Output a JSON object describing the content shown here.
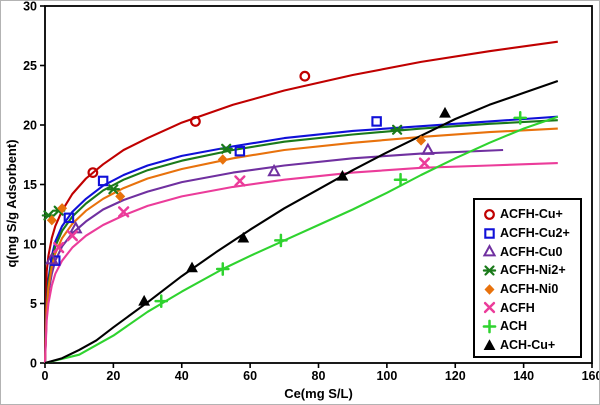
{
  "figure": {
    "background": "#ffffff",
    "border_color": "#b3b3b3"
  },
  "chart_data": {
    "type": "scatter",
    "title": "",
    "xlabel": "Ce(mg S/L)",
    "ylabel": "q(mg S/g Adsorbent)",
    "xlim": [
      0,
      160
    ],
    "ylim": [
      0,
      30
    ],
    "xticks": [
      0,
      20,
      40,
      60,
      80,
      100,
      120,
      140,
      160
    ],
    "yticks": [
      0,
      5,
      10,
      15,
      20,
      25,
      30
    ],
    "grid": false,
    "legend": {
      "position": "inside-right",
      "border_color": "#000000",
      "background": "#ffffff"
    },
    "series": [
      {
        "name": "ACFH-Cu+",
        "color": "#C00000",
        "marker": "circle-open",
        "points": [
          [
            14,
            16.0
          ],
          [
            44,
            20.3
          ],
          [
            76,
            24.1
          ]
        ],
        "curve": [
          [
            0,
            0
          ],
          [
            0.5,
            7.7
          ],
          [
            1,
            9.0
          ],
          [
            2,
            10.5
          ],
          [
            3,
            11.5
          ],
          [
            5,
            12.8
          ],
          [
            8,
            14.2
          ],
          [
            12,
            15.5
          ],
          [
            17,
            16.7
          ],
          [
            23,
            17.9
          ],
          [
            30,
            18.9
          ],
          [
            40,
            20.2
          ],
          [
            55,
            21.7
          ],
          [
            70,
            22.9
          ],
          [
            90,
            24.2
          ],
          [
            110,
            25.3
          ],
          [
            130,
            26.2
          ],
          [
            150,
            27.0
          ]
        ]
      },
      {
        "name": "ACFH-Cu2+",
        "color": "#1010D8",
        "marker": "square-open",
        "points": [
          [
            3,
            8.6
          ],
          [
            7,
            12.2
          ],
          [
            17,
            15.3
          ],
          [
            57,
            17.8
          ],
          [
            97,
            20.3
          ]
        ],
        "curve": [
          [
            0,
            0
          ],
          [
            0.5,
            5.0
          ],
          [
            1,
            7.0
          ],
          [
            2,
            9.0
          ],
          [
            3,
            10.2
          ],
          [
            5,
            11.5
          ],
          [
            8,
            12.7
          ],
          [
            12,
            13.8
          ],
          [
            17,
            14.9
          ],
          [
            23,
            15.8
          ],
          [
            30,
            16.6
          ],
          [
            40,
            17.4
          ],
          [
            55,
            18.2
          ],
          [
            70,
            18.9
          ],
          [
            90,
            19.5
          ],
          [
            110,
            19.9
          ],
          [
            130,
            20.3
          ],
          [
            150,
            20.7
          ]
        ]
      },
      {
        "name": "ACFH-Cu0",
        "color": "#7030A0",
        "marker": "triangle-open",
        "points": [
          [
            2,
            8.7
          ],
          [
            9,
            11.3
          ],
          [
            67,
            16.1
          ],
          [
            112,
            17.9
          ]
        ],
        "curve": [
          [
            0,
            0
          ],
          [
            0.5,
            4.2
          ],
          [
            1,
            5.9
          ],
          [
            2,
            7.5
          ],
          [
            3,
            8.6
          ],
          [
            5,
            9.8
          ],
          [
            8,
            10.9
          ],
          [
            12,
            11.9
          ],
          [
            17,
            12.9
          ],
          [
            23,
            13.7
          ],
          [
            30,
            14.4
          ],
          [
            40,
            15.2
          ],
          [
            55,
            16.0
          ],
          [
            70,
            16.6
          ],
          [
            90,
            17.2
          ],
          [
            110,
            17.6
          ],
          [
            134,
            17.9
          ]
        ]
      },
      {
        "name": "ACFH-Ni2+",
        "color": "#1A7A1A",
        "marker": "star",
        "points": [
          [
            1,
            12.4
          ],
          [
            4,
            12.8
          ],
          [
            20,
            14.6
          ],
          [
            53,
            18.0
          ],
          [
            103,
            19.6
          ]
        ],
        "curve": [
          [
            0,
            0
          ],
          [
            0.5,
            4.8
          ],
          [
            1,
            6.7
          ],
          [
            2,
            8.6
          ],
          [
            3,
            9.8
          ],
          [
            5,
            11.1
          ],
          [
            8,
            12.3
          ],
          [
            12,
            13.4
          ],
          [
            17,
            14.5
          ],
          [
            23,
            15.4
          ],
          [
            30,
            16.2
          ],
          [
            40,
            17.0
          ],
          [
            55,
            17.9
          ],
          [
            70,
            18.6
          ],
          [
            90,
            19.2
          ],
          [
            110,
            19.7
          ],
          [
            130,
            20.1
          ],
          [
            150,
            20.4
          ]
        ]
      },
      {
        "name": "ACFH-Ni0",
        "color": "#E8720C",
        "marker": "diamond-filled",
        "points": [
          [
            2,
            12.0
          ],
          [
            5,
            13.0
          ],
          [
            22,
            14.0
          ],
          [
            52,
            17.1
          ],
          [
            110,
            18.7
          ]
        ],
        "curve": [
          [
            0,
            0
          ],
          [
            0.5,
            4.5
          ],
          [
            1,
            6.3
          ],
          [
            2,
            8.1
          ],
          [
            3,
            9.2
          ],
          [
            5,
            10.5
          ],
          [
            8,
            11.7
          ],
          [
            12,
            12.8
          ],
          [
            17,
            13.8
          ],
          [
            23,
            14.7
          ],
          [
            30,
            15.5
          ],
          [
            40,
            16.3
          ],
          [
            55,
            17.2
          ],
          [
            70,
            17.9
          ],
          [
            90,
            18.5
          ],
          [
            110,
            19.0
          ],
          [
            130,
            19.4
          ],
          [
            150,
            19.7
          ]
        ]
      },
      {
        "name": "ACFH",
        "color": "#EB3C9A",
        "marker": "x",
        "points": [
          [
            4,
            9.7
          ],
          [
            8,
            10.7
          ],
          [
            23,
            12.7
          ],
          [
            57,
            15.3
          ],
          [
            111,
            16.8
          ]
        ],
        "curve": [
          [
            0,
            0
          ],
          [
            0.5,
            3.6
          ],
          [
            1,
            5.0
          ],
          [
            2,
            6.5
          ],
          [
            3,
            7.5
          ],
          [
            5,
            8.6
          ],
          [
            8,
            9.7
          ],
          [
            12,
            10.7
          ],
          [
            17,
            11.6
          ],
          [
            23,
            12.4
          ],
          [
            30,
            13.2
          ],
          [
            40,
            14.0
          ],
          [
            55,
            14.8
          ],
          [
            70,
            15.4
          ],
          [
            90,
            16.0
          ],
          [
            110,
            16.4
          ],
          [
            130,
            16.6
          ],
          [
            150,
            16.8
          ]
        ]
      },
      {
        "name": "ACH",
        "color": "#2FD32F",
        "marker": "plus",
        "points": [
          [
            34,
            5.2
          ],
          [
            52,
            7.9
          ],
          [
            69,
            10.3
          ],
          [
            104,
            15.4
          ],
          [
            139,
            20.6
          ]
        ],
        "curve": [
          [
            0,
            0
          ],
          [
            10,
            0.7
          ],
          [
            20,
            2.3
          ],
          [
            30,
            4.3
          ],
          [
            40,
            6.0
          ],
          [
            52,
            7.9
          ],
          [
            60,
            9.0
          ],
          [
            70,
            10.3
          ],
          [
            80,
            11.6
          ],
          [
            90,
            12.9
          ],
          [
            100,
            14.3
          ],
          [
            110,
            15.8
          ],
          [
            120,
            17.2
          ],
          [
            130,
            18.5
          ],
          [
            140,
            19.7
          ],
          [
            150,
            20.7
          ]
        ]
      },
      {
        "name": "ACH-Cu+",
        "color": "#000000",
        "marker": "triangle-filled",
        "points": [
          [
            29,
            5.2
          ],
          [
            43,
            8.0
          ],
          [
            58,
            10.5
          ],
          [
            87,
            15.7
          ],
          [
            117,
            21.0
          ]
        ],
        "curve": [
          [
            0,
            0
          ],
          [
            5,
            0.4
          ],
          [
            10,
            1.1
          ],
          [
            15,
            1.9
          ],
          [
            20,
            3.0
          ],
          [
            30,
            5.1
          ],
          [
            40,
            7.3
          ],
          [
            50,
            9.3
          ],
          [
            60,
            11.2
          ],
          [
            70,
            13.0
          ],
          [
            80,
            14.6
          ],
          [
            90,
            16.2
          ],
          [
            100,
            17.7
          ],
          [
            110,
            19.1
          ],
          [
            120,
            20.5
          ],
          [
            130,
            21.7
          ],
          [
            140,
            22.7
          ],
          [
            150,
            23.7
          ]
        ]
      }
    ]
  }
}
